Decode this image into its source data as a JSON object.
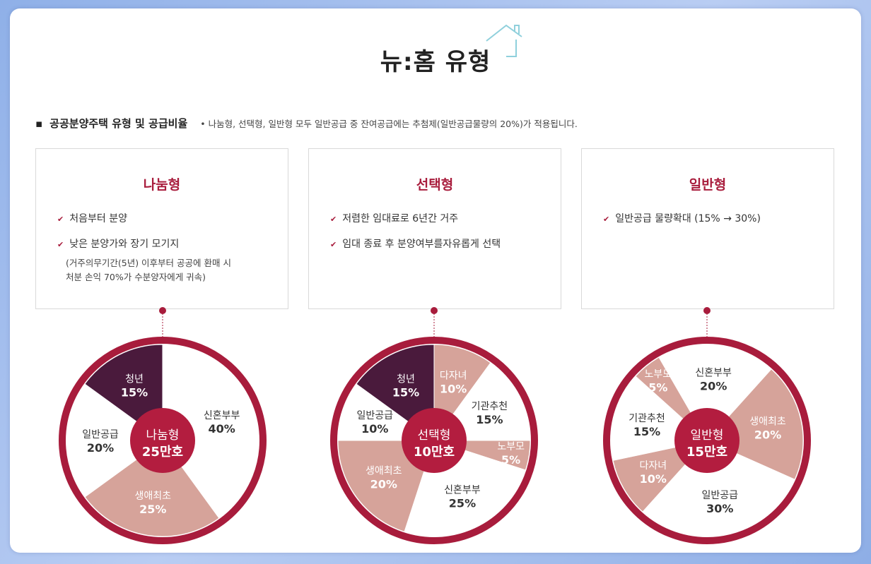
{
  "title": "뉴:홈 유형",
  "section": {
    "bullet": "▪",
    "heading": "공공분양주택 유형 및 공급비율",
    "note": "• 나눔형, 선택형, 일반형 모두 일반공급 중 잔여공급에는 추첨제(일반공급물량의 20%)가 적용됩니다."
  },
  "colors": {
    "brand": "#a81c3c",
    "accent": "#c4223e",
    "youth": "#4a1a3c",
    "light": "#d6a39a",
    "sky": "#8fd0dc"
  },
  "boxes": [
    {
      "title": "나눔형",
      "items": [
        "처음부터 분양",
        "낮은 분양가와 장기 모기지"
      ],
      "sub": [
        "(거주의무기간(5년) 이후부터 공공에 환매 시",
        "처분 손익 70%가 수분양자에게 귀속)"
      ]
    },
    {
      "title": "선택형",
      "items": [
        "저렴한 임대료로 6년간 거주",
        "임대 종료 후 분양여부를자유롭게 선택"
      ]
    },
    {
      "title": "일반형",
      "items": [
        "일반공급 물량확대 (15% → 30%)"
      ]
    }
  ],
  "chart_data": [
    {
      "type": "pie",
      "title": "",
      "center": [
        "나눔형",
        "25만호"
      ],
      "slices": [
        {
          "label": "신혼부부",
          "value": 40,
          "text": "40%",
          "color": "#ffffff"
        },
        {
          "label": "생애최초",
          "value": 25,
          "text": "25%",
          "color": "#d6a39a"
        },
        {
          "label": "일반공급",
          "value": 20,
          "text": "20%",
          "color": "#ffffff"
        },
        {
          "label": "청년",
          "value": 15,
          "text": "15%",
          "color": "#4a1a3c"
        }
      ]
    },
    {
      "type": "pie",
      "title": "",
      "center": [
        "선택형",
        "10만호"
      ],
      "slices": [
        {
          "label": "다자녀",
          "value": 10,
          "text": "10%",
          "color": "#d6a39a"
        },
        {
          "label": "기관추천",
          "value": 15,
          "text": "15%",
          "color": "#ffffff"
        },
        {
          "label": "노부모",
          "value": 5,
          "text": "5%",
          "color": "#d6a39a"
        },
        {
          "label": "신혼부부",
          "value": 25,
          "text": "25%",
          "color": "#ffffff"
        },
        {
          "label": "생애최초",
          "value": 20,
          "text": "20%",
          "color": "#d6a39a"
        },
        {
          "label": "일반공급",
          "value": 10,
          "text": "10%",
          "color": "#ffffff"
        },
        {
          "label": "청년",
          "value": 15,
          "text": "15%",
          "color": "#4a1a3c"
        }
      ]
    },
    {
      "type": "pie",
      "title": "",
      "center": [
        "일반형",
        "15만호"
      ],
      "slices": [
        {
          "label": "신혼부부",
          "value": 20,
          "text": "20%",
          "color": "#ffffff"
        },
        {
          "label": "생애최초",
          "value": 20,
          "text": "20%",
          "color": "#d6a39a"
        },
        {
          "label": "일반공급",
          "value": 30,
          "text": "30%",
          "color": "#ffffff"
        },
        {
          "label": "다자녀",
          "value": 10,
          "text": "10%",
          "color": "#d6a39a"
        },
        {
          "label": "기관추천",
          "value": 15,
          "text": "15%",
          "color": "#ffffff"
        },
        {
          "label": "노부모",
          "value": 5,
          "text": "5%",
          "color": "#d6a39a"
        }
      ]
    }
  ]
}
